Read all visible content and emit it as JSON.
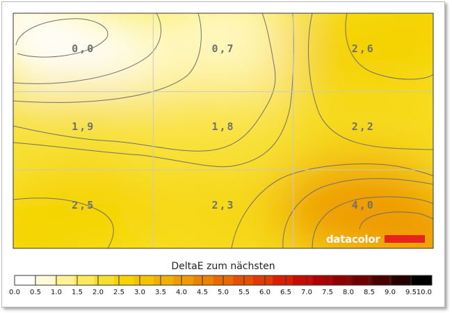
{
  "chart_data": {
    "type": "heatmap",
    "rows": 3,
    "cols": 3,
    "values": [
      [
        0.0,
        0.7,
        2.6
      ],
      [
        1.9,
        1.8,
        2.2
      ],
      [
        2.5,
        2.3,
        4.0
      ]
    ],
    "cell_labels": [
      [
        "0,0",
        "0,7",
        "2,6"
      ],
      [
        "1,9",
        "1,8",
        "2,2"
      ],
      [
        "2,5",
        "2,3",
        "4,0"
      ]
    ],
    "colorbar": {
      "title": "DeltaE zum nächsten",
      "min": 0.0,
      "max": 10.0,
      "ticks": [
        "0.0",
        "0.5",
        "1.0",
        "1.5",
        "2.0",
        "2.5",
        "3.0",
        "3.5",
        "4.0",
        "4.5",
        "5.0",
        "5.5",
        "6.0",
        "6.5",
        "7.0",
        "7.5",
        "8.0",
        "8.5",
        "9.0",
        "9.5",
        "10.0"
      ],
      "colors": [
        "#ffffff",
        "#fffbd8",
        "#fff39a",
        "#fbea5c",
        "#f7df2e",
        "#f5d400",
        "#f3c300",
        "#f0b000",
        "#ee9a00",
        "#eb8200",
        "#e86a00",
        "#e55000",
        "#e03a00",
        "#d82000",
        "#c80c00",
        "#b00000",
        "#900000",
        "#700000",
        "#4a0000",
        "#240000",
        "#000000"
      ]
    },
    "grid": true
  },
  "logo": {
    "text": "datacolor",
    "bar_color": "#e8221c"
  }
}
